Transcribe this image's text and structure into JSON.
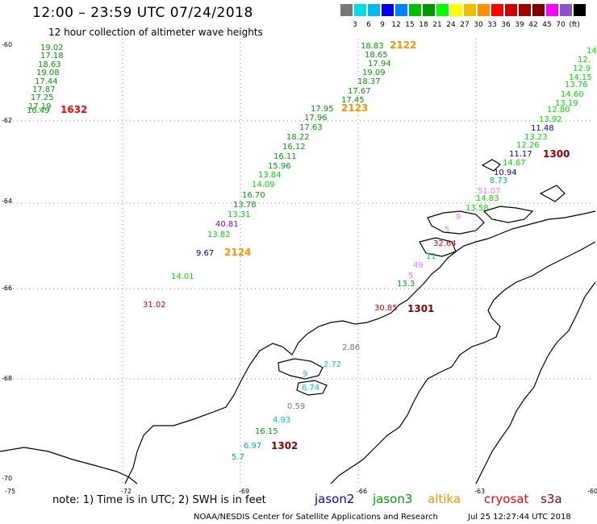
{
  "header": {
    "title": "12:00 – 23:59 UTC 07/24/2018",
    "subtitle": "12 hour collection of altimeter wave heights"
  },
  "scale": {
    "colors": [
      "#777777",
      "#00e0e0",
      "#00bcec",
      "#0000f0",
      "#0080ff",
      "#00c000",
      "#009800",
      "#00ff00",
      "#ffff00",
      "#f0c000",
      "#ff9000",
      "#ff0000",
      "#d00000",
      "#a00000",
      "#800000",
      "#ff00ff",
      "#9050d0",
      "#000000"
    ],
    "labels": [
      "3",
      "6",
      "9",
      "12",
      "15",
      "18",
      "21",
      "24",
      "27",
      "30",
      "33",
      "36",
      "39",
      "42",
      "45",
      "70",
      "(ft)"
    ]
  },
  "axes": {
    "lat_labels": [
      "-60",
      "-62",
      "-64",
      "-66",
      "-68",
      "-70"
    ],
    "lon_labels": [
      "-75",
      "-72",
      "-69",
      "-66",
      "-63",
      "-60"
    ]
  },
  "wave_labels": [
    {
      "t": "19.02",
      "c": "#00a000"
    },
    {
      "t": "17.18",
      "c": "#00a000"
    },
    {
      "t": "18.63",
      "c": "#00a000"
    },
    {
      "t": "19.08",
      "c": "#00a000"
    },
    {
      "t": "17.44",
      "c": "#00a000"
    },
    {
      "t": "17.87",
      "c": "#00a000"
    },
    {
      "t": "17.25",
      "c": "#00a000"
    },
    {
      "t": "17.19",
      "c": "#00a000"
    },
    {
      "t": "16.49",
      "c": "#00a000"
    },
    {
      "t": "1632",
      "c": "#ff0000"
    },
    {
      "t": "18.83",
      "c": "#00a000"
    },
    {
      "t": "2122",
      "c": "#ff9000"
    },
    {
      "t": "18.65",
      "c": "#00a000"
    },
    {
      "t": "17.94",
      "c": "#00a000"
    },
    {
      "t": "19.09",
      "c": "#00a000"
    },
    {
      "t": "18.37",
      "c": "#00a000"
    },
    {
      "t": "17.67",
      "c": "#00a000"
    },
    {
      "t": "17.45",
      "c": "#00a000"
    },
    {
      "t": "17.95",
      "c": "#00a000"
    },
    {
      "t": "2123",
      "c": "#ff9000"
    },
    {
      "t": "17.96",
      "c": "#00a000"
    },
    {
      "t": "17.63",
      "c": "#00a000"
    },
    {
      "t": "18.22",
      "c": "#00a000"
    },
    {
      "t": "16.12",
      "c": "#00a000"
    },
    {
      "t": "16.11",
      "c": "#00a000"
    },
    {
      "t": "15.96",
      "c": "#00a000"
    },
    {
      "t": "13.84",
      "c": "#00dd00"
    },
    {
      "t": "14.09",
      "c": "#00dd00"
    },
    {
      "t": "16.70",
      "c": "#00a000"
    },
    {
      "t": "13.78",
      "c": "#00a000"
    },
    {
      "t": "13.31",
      "c": "#00dd00"
    },
    {
      "t": "40.81",
      "c": "#a000a0"
    },
    {
      "t": "13.82",
      "c": "#00dd00"
    },
    {
      "t": "9.67",
      "c": "#0000c0"
    },
    {
      "t": "2124",
      "c": "#ff9000"
    },
    {
      "t": "14.01",
      "c": "#00dd00"
    },
    {
      "t": "31.02",
      "c": "#e00000"
    },
    {
      "t": "14.",
      "c": "#00dd00"
    },
    {
      "t": "12.",
      "c": "#00dd00"
    },
    {
      "t": "12.9",
      "c": "#00dd00"
    },
    {
      "t": "14.15",
      "c": "#00dd00"
    },
    {
      "t": "13.76",
      "c": "#00dd00"
    },
    {
      "t": "14.60",
      "c": "#00dd00"
    },
    {
      "t": "13.19",
      "c": "#00dd00"
    },
    {
      "t": "12.80",
      "c": "#00dd00"
    },
    {
      "t": "13.92",
      "c": "#00dd00"
    },
    {
      "t": "11.48",
      "c": "#0000c0"
    },
    {
      "t": "13.23",
      "c": "#00dd00"
    },
    {
      "t": "12.26",
      "c": "#00dd00"
    },
    {
      "t": "11.17",
      "c": "#0000c0"
    },
    {
      "t": "1300",
      "c": "#900000"
    },
    {
      "t": "14.67",
      "c": "#00dd00"
    },
    {
      "t": "10.94",
      "c": "#0000c0"
    },
    {
      "t": "8.73",
      "c": "#00a0e0"
    },
    {
      "t": "51.07",
      "c": "#ff70ff"
    },
    {
      "t": "14.83",
      "c": "#00dd00"
    },
    {
      "t": "13.58",
      "c": "#00dd00"
    },
    {
      "t": "9",
      "c": "#ff70ff"
    },
    {
      "t": "5",
      "c": "#ff70ff"
    },
    {
      "t": "32.64",
      "c": "#e00000"
    },
    {
      "t": "11",
      "c": "#00c8c8"
    },
    {
      "t": "49",
      "c": "#ff70ff"
    },
    {
      "t": "5",
      "c": "#ff70ff"
    },
    {
      "t": "13.3",
      "c": "#00a000"
    },
    {
      "t": "30.85",
      "c": "#e00000"
    },
    {
      "t": "1301",
      "c": "#900000"
    },
    {
      "t": "2.86",
      "c": "#777777"
    },
    {
      "t": "2.72",
      "c": "#00c8ff"
    },
    {
      "t": "9",
      "c": "#00c8ff"
    },
    {
      "t": "6.74",
      "c": "#00c8ff"
    },
    {
      "t": "0.59",
      "c": "#777777"
    },
    {
      "t": "4.93",
      "c": "#00c8c8"
    },
    {
      "t": "16.15",
      "c": "#00a000"
    },
    {
      "t": "6.97",
      "c": "#00a0e0"
    },
    {
      "t": "1302",
      "c": "#900000"
    },
    {
      "t": "5.7",
      "c": "#00a0e0"
    }
  ],
  "legend": {
    "note": "note:  1) Time is in UTC;  2) SWH is in feet",
    "satellites": [
      {
        "name": "jason2",
        "color": "#0000e0"
      },
      {
        "name": "jason3",
        "color": "#00a000"
      },
      {
        "name": "altika",
        "color": "#ff9000"
      },
      {
        "name": "cryosat",
        "color": "#ff0000"
      },
      {
        "name": "s3a",
        "color": "#900000"
      }
    ]
  },
  "footer": {
    "credit": "NOAA/NESDIS Center for Satellite Applications and Research",
    "timestamp": "Jul 25 12:27:44 UTC 2018"
  }
}
